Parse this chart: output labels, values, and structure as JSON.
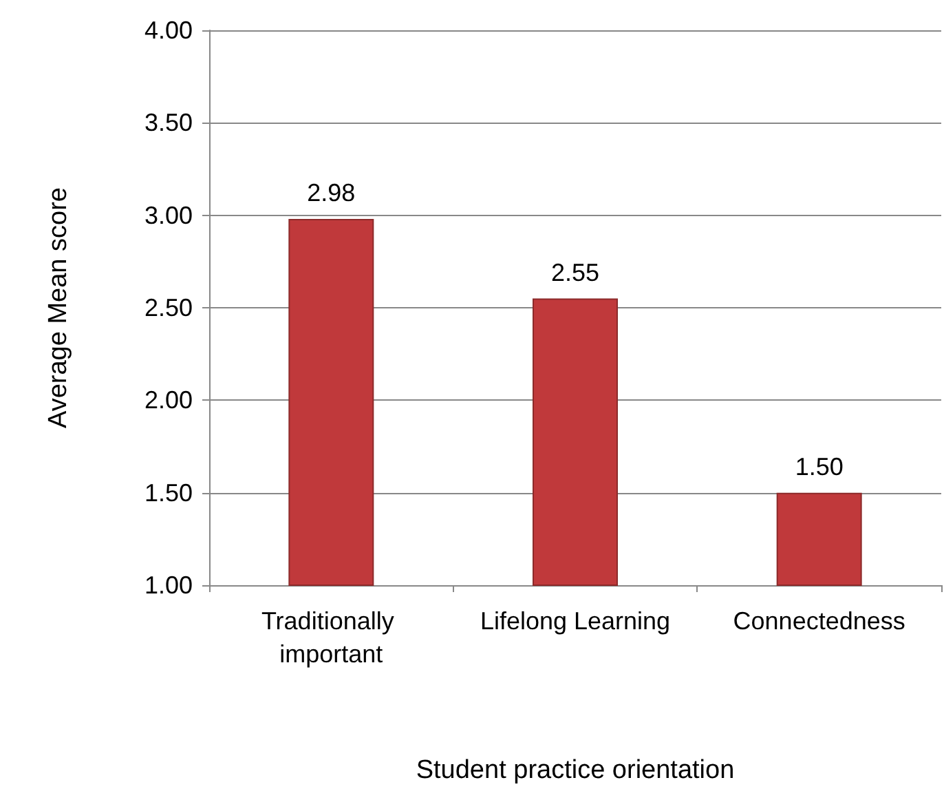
{
  "chart_data": {
    "type": "bar",
    "xlabel": "Student practice orientation",
    "ylabel": "Average Mean score",
    "categories": [
      "Traditionally important",
      "Lifelong Learning",
      "Connectedness"
    ],
    "values": [
      2.98,
      2.55,
      1.5
    ],
    "value_labels": [
      "2.98",
      "2.55",
      "1.50"
    ],
    "color": "#c0393b",
    "ylim": [
      1,
      4
    ],
    "yticks": [
      {
        "value": 1,
        "label": "1.00"
      },
      {
        "value": 1.5,
        "label": "1.50"
      },
      {
        "value": 2,
        "label": "2.00"
      },
      {
        "value": 2.5,
        "label": "2.50"
      },
      {
        "value": 3,
        "label": "3.00"
      },
      {
        "value": 3.5,
        "label": "3.50"
      },
      {
        "value": 4,
        "label": "4.00"
      }
    ],
    "grid": "y"
  }
}
